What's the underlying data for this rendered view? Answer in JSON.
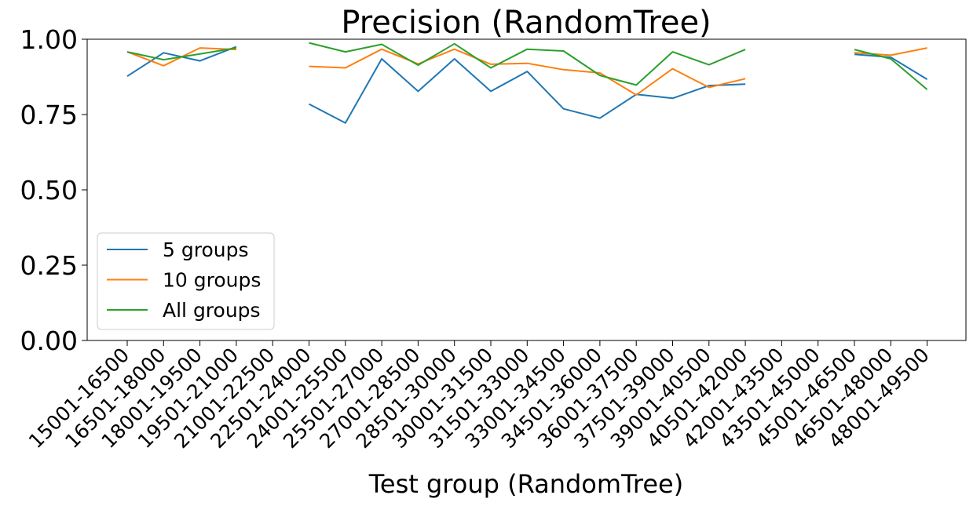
{
  "chart_data": {
    "type": "line",
    "title": "Precision (RandomTree)",
    "xlabel": "Test group (RandomTree)",
    "ylabel": "",
    "ylim": [
      0,
      1.0
    ],
    "yticks": [
      0.0,
      0.25,
      0.5,
      0.75,
      1.0
    ],
    "ytick_labels": [
      "0.00",
      "0.25",
      "0.50",
      "0.75",
      "1.00"
    ],
    "grid": false,
    "legend_position": "lower-left",
    "categories": [
      "15001-16500",
      "16501-18000",
      "18001-19500",
      "19501-21000",
      "21001-22500",
      "22501-24000",
      "24001-25500",
      "25501-27000",
      "27001-28500",
      "28501-30000",
      "30001-31500",
      "31501-33000",
      "33001-34500",
      "34501-36000",
      "36001-37500",
      "37501-39000",
      "39001-40500",
      "40501-42000",
      "42001-43500",
      "43501-45000",
      "45001-46500",
      "46501-48000",
      "48001-49500"
    ],
    "series": [
      {
        "name": "5 groups",
        "color": "#1f77b4",
        "values": [
          0.877,
          0.955,
          0.928,
          0.975,
          null,
          0.785,
          0.722,
          0.935,
          0.827,
          0.935,
          0.827,
          0.893,
          0.769,
          0.738,
          0.817,
          0.804,
          0.846,
          0.851,
          null,
          null,
          0.95,
          0.94,
          0.867
        ]
      },
      {
        "name": "10 groups",
        "color": "#ff7f0e",
        "values": [
          0.958,
          0.912,
          0.971,
          0.966,
          null,
          0.91,
          0.905,
          0.967,
          0.918,
          0.967,
          0.917,
          0.92,
          0.899,
          0.888,
          0.815,
          0.902,
          0.84,
          0.869,
          null,
          null,
          0.955,
          0.947,
          0.971
        ]
      },
      {
        "name": "All groups",
        "color": "#2ca02c",
        "values": [
          0.958,
          0.932,
          0.951,
          0.971,
          null,
          0.988,
          0.958,
          0.983,
          0.914,
          0.985,
          0.905,
          0.967,
          0.961,
          0.88,
          0.848,
          0.958,
          0.915,
          0.966,
          null,
          null,
          0.966,
          0.935,
          0.833
        ]
      }
    ]
  }
}
